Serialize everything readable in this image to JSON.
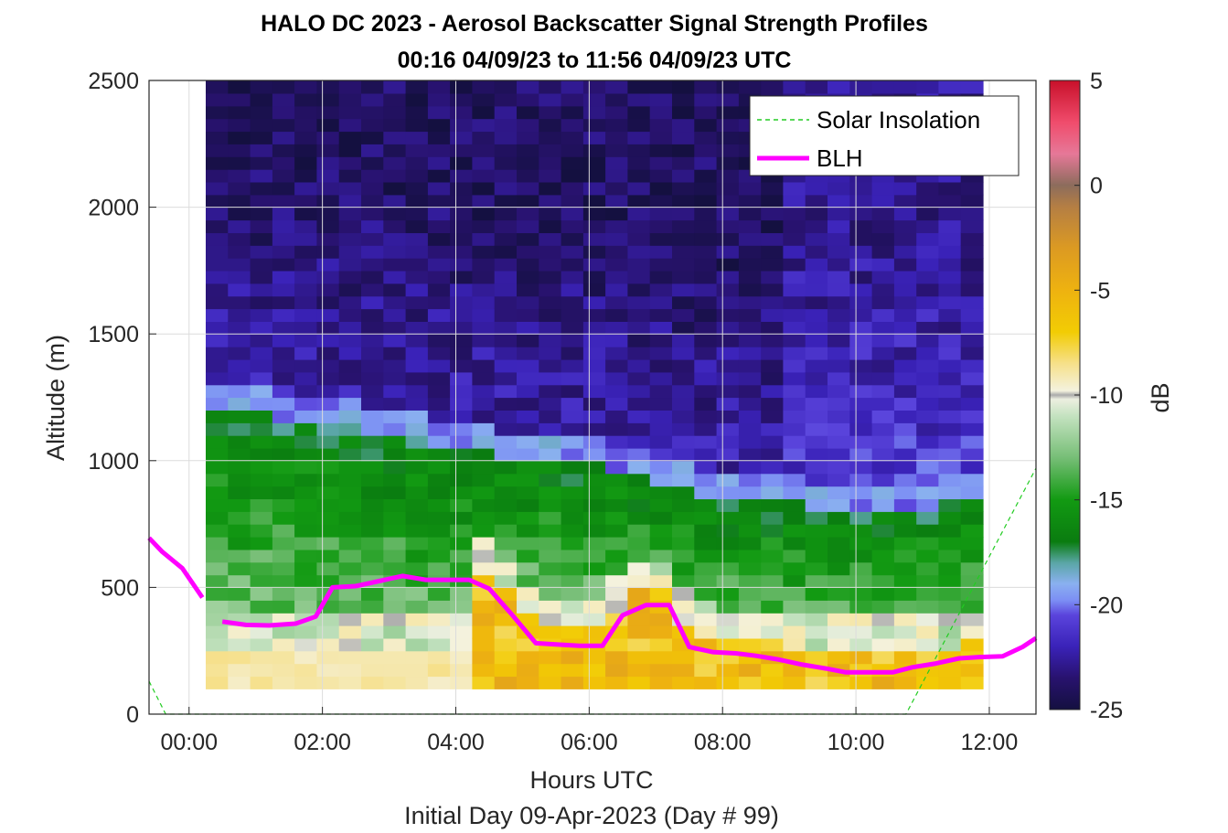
{
  "chart_data": {
    "type": "heatmap",
    "title": "HALO DC 2023 - Aerosol Backscatter Signal Strength Profiles",
    "subtitle": "00:16 04/09/23 to 11:56 04/09/23  UTC",
    "xlabel": "Hours UTC",
    "xlabel2": "Initial Day 09-Apr-2023 (Day # 99)",
    "ylabel": "Altitude (m)",
    "colorbar_label": "dB",
    "xlim_hours": [
      -0.6,
      12.7
    ],
    "ylim": [
      0,
      2500
    ],
    "x_ticks": [
      {
        "value": 0,
        "label": "00:00"
      },
      {
        "value": 2,
        "label": "02:00"
      },
      {
        "value": 4,
        "label": "04:00"
      },
      {
        "value": 6,
        "label": "06:00"
      },
      {
        "value": 8,
        "label": "08:00"
      },
      {
        "value": 10,
        "label": "10:00"
      },
      {
        "value": 12,
        "label": "12:00"
      }
    ],
    "y_ticks": [
      {
        "value": 0,
        "label": "0"
      },
      {
        "value": 500,
        "label": "500"
      },
      {
        "value": 1000,
        "label": "1000"
      },
      {
        "value": 1500,
        "label": "1500"
      },
      {
        "value": 2000,
        "label": "2000"
      },
      {
        "value": 2500,
        "label": "2500"
      }
    ],
    "colorbar": {
      "range": [
        -25,
        5
      ],
      "ticks": [
        {
          "value": 5,
          "label": "5"
        },
        {
          "value": 0,
          "label": "0"
        },
        {
          "value": -5,
          "label": "-5"
        },
        {
          "value": -10,
          "label": "-10"
        },
        {
          "value": -15,
          "label": "-15"
        },
        {
          "value": -20,
          "label": "-20"
        },
        {
          "value": -25,
          "label": "-25"
        }
      ],
      "stops": [
        {
          "v": -25,
          "c": "#141040"
        },
        {
          "v": -23.5,
          "c": "#28126e"
        },
        {
          "v": -22,
          "c": "#3a22b8"
        },
        {
          "v": -20.5,
          "c": "#5a44dc"
        },
        {
          "v": -19.8,
          "c": "#7c8ef4"
        },
        {
          "v": -19,
          "c": "#8ab0f0"
        },
        {
          "v": -18,
          "c": "#5aa6a6"
        },
        {
          "v": -17,
          "c": "#0a7c10"
        },
        {
          "v": -15,
          "c": "#129a12"
        },
        {
          "v": -13,
          "c": "#76be76"
        },
        {
          "v": -11,
          "c": "#c4e2c0"
        },
        {
          "v": -10.2,
          "c": "#ecefe0"
        },
        {
          "v": -10,
          "c": "#aaaaaa"
        },
        {
          "v": -9.8,
          "c": "#f4f2de"
        },
        {
          "v": -8.5,
          "c": "#f6e08a"
        },
        {
          "v": -7,
          "c": "#f2cc04"
        },
        {
          "v": -5,
          "c": "#eeb210"
        },
        {
          "v": -3,
          "c": "#dc9a22"
        },
        {
          "v": -1,
          "c": "#b47e44"
        },
        {
          "v": 0,
          "c": "#8c6c5c"
        },
        {
          "v": 1.5,
          "c": "#e67898"
        },
        {
          "v": 3,
          "c": "#f04c6c"
        },
        {
          "v": 5,
          "c": "#c8102a"
        }
      ]
    },
    "heatmap": {
      "x_start_hours": 0.25,
      "x_step_hours": 0.333,
      "y_start_m": 100,
      "y_step_m": 50,
      "x_count": 35,
      "y_count": 48,
      "note_values": "dB, computed from layered profile: surface yellow, green boundary layer, blue-purple free troposphere"
    },
    "series": [
      {
        "name": "Solar Insolation",
        "color": "#22cc22",
        "style": "dashed",
        "x": [
          -0.6,
          -0.35,
          10.75,
          12.7
        ],
        "y": [
          130,
          0,
          0,
          970
        ]
      },
      {
        "name": "BLH",
        "color": "#ff00ff",
        "style": "solid",
        "segments": [
          {
            "x": [
              -0.6,
              -0.4,
              -0.1,
              0.2
            ],
            "y": [
              695,
              640,
              575,
              460
            ]
          },
          {
            "x": [
              0.5,
              0.85,
              1.2,
              1.6,
              1.9,
              2.15,
              2.5,
              2.85,
              3.2,
              3.55,
              3.9,
              4.2,
              4.5,
              4.85,
              5.2,
              5.5,
              5.85,
              6.2,
              6.5,
              6.85,
              7.2,
              7.5,
              7.85,
              8.2,
              8.5,
              8.85,
              9.2,
              9.55,
              9.85,
              10.2,
              10.55,
              10.85,
              11.2,
              11.55,
              11.85,
              12.2,
              12.5,
              12.7
            ],
            "y": [
              365,
              352,
              350,
              357,
              385,
              500,
              505,
              525,
              545,
              530,
              530,
              530,
              495,
              390,
              280,
              275,
              270,
              270,
              390,
              430,
              430,
              265,
              245,
              240,
              230,
              215,
              195,
              180,
              165,
              165,
              165,
              185,
              200,
              220,
              225,
              228,
              265,
              300
            ]
          }
        ]
      }
    ],
    "legend": {
      "placement": "top-right",
      "entries": [
        {
          "label": "Solar Insolation",
          "color": "#22cc22",
          "style": "dashed"
        },
        {
          "label": "BLH",
          "color": "#ff00ff",
          "style": "solid"
        }
      ]
    },
    "grid": true
  }
}
